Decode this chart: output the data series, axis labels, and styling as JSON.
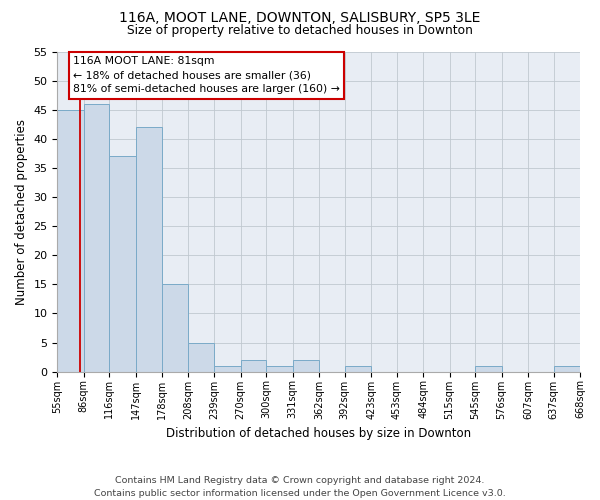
{
  "title1": "116A, MOOT LANE, DOWNTON, SALISBURY, SP5 3LE",
  "title2": "Size of property relative to detached houses in Downton",
  "xlabel": "Distribution of detached houses by size in Downton",
  "ylabel": "Number of detached properties",
  "bins": [
    "55sqm",
    "86sqm",
    "116sqm",
    "147sqm",
    "178sqm",
    "208sqm",
    "239sqm",
    "270sqm",
    "300sqm",
    "331sqm",
    "362sqm",
    "392sqm",
    "423sqm",
    "453sqm",
    "484sqm",
    "515sqm",
    "545sqm",
    "576sqm",
    "607sqm",
    "637sqm",
    "668sqm"
  ],
  "bar_values": [
    45,
    46,
    37,
    42,
    15,
    5,
    1,
    2,
    1,
    2,
    0,
    1,
    0,
    0,
    0,
    0,
    1,
    0,
    0,
    1
  ],
  "bar_color": "#ccd9e8",
  "bar_edge_color": "#7aaac8",
  "property_line_x": 81,
  "bin_edges": [
    55,
    86,
    116,
    147,
    178,
    208,
    239,
    270,
    300,
    331,
    362,
    392,
    423,
    453,
    484,
    515,
    545,
    576,
    607,
    637,
    668
  ],
  "annotation_line1": "116A MOOT LANE: 81sqm",
  "annotation_line2": "← 18% of detached houses are smaller (36)",
  "annotation_line3": "81% of semi-detached houses are larger (160) →",
  "annotation_box_color": "#ffffff",
  "annotation_box_edge": "#cc0000",
  "red_line_color": "#cc0000",
  "ylim": [
    0,
    55
  ],
  "yticks": [
    0,
    5,
    10,
    15,
    20,
    25,
    30,
    35,
    40,
    45,
    50,
    55
  ],
  "footer1": "Contains HM Land Registry data © Crown copyright and database right 2024.",
  "footer2": "Contains public sector information licensed under the Open Government Licence v3.0.",
  "background_color": "#ffffff",
  "plot_bg_color": "#e8edf4",
  "grid_color": "#c0c8d0"
}
